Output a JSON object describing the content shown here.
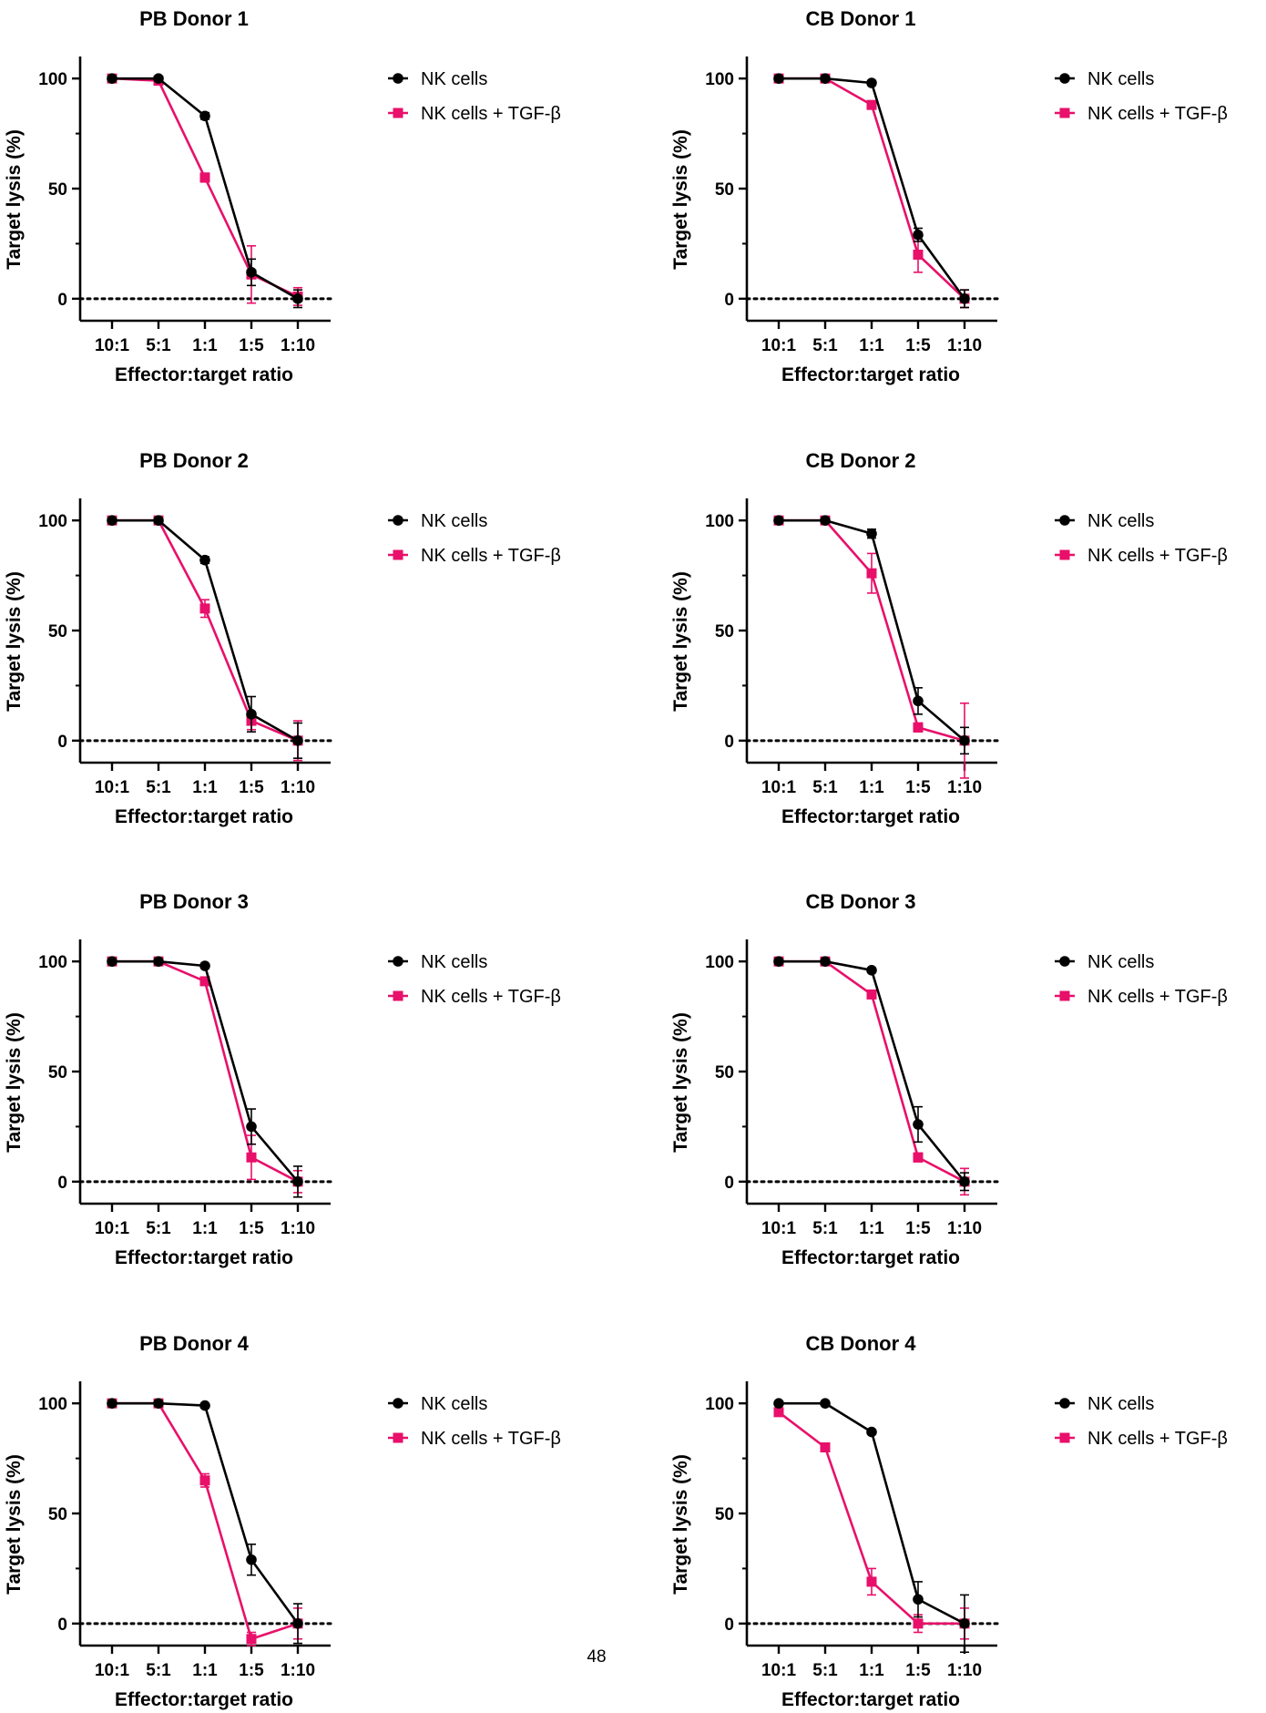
{
  "page": {
    "page_number": "48"
  },
  "legend": {
    "series_labels": [
      "NK cells",
      "NK cells + TGF-β"
    ]
  },
  "colors": {
    "nk_cells": "#000000",
    "nk_cells_tgfb": "#e8106a",
    "axis": "#000000"
  },
  "chart_data": [
    {
      "type": "line",
      "title": "PB Donor 1",
      "xlabel": "Effector:target ratio",
      "ylabel": "Target lysis (%)",
      "categories": [
        "10:1",
        "5:1",
        "1:1",
        "1:5",
        "1:10"
      ],
      "ylim": [
        -10,
        110
      ],
      "yticks": [
        0,
        50,
        100
      ],
      "reference_line_y": 0,
      "legend_position": "right",
      "series": [
        {
          "name": "NK cells",
          "marker": "circle",
          "values": [
            100,
            100,
            83,
            12,
            0
          ],
          "error": [
            1,
            1,
            1.5,
            6,
            4
          ]
        },
        {
          "name": "NK cells + TGF-β",
          "marker": "square",
          "values": [
            100,
            99,
            55,
            11,
            1
          ],
          "error": [
            1,
            1,
            2,
            13,
            4
          ]
        }
      ]
    },
    {
      "type": "line",
      "title": "CB Donor 1",
      "xlabel": "Effector:target ratio",
      "ylabel": "Target lysis (%)",
      "categories": [
        "10:1",
        "5:1",
        "1:1",
        "1:5",
        "1:10"
      ],
      "ylim": [
        -10,
        110
      ],
      "yticks": [
        0,
        50,
        100
      ],
      "reference_line_y": 0,
      "legend_position": "right",
      "series": [
        {
          "name": "NK cells",
          "marker": "circle",
          "values": [
            100,
            100,
            98,
            29,
            0
          ],
          "error": [
            1,
            1,
            1,
            3,
            4
          ]
        },
        {
          "name": "NK cells + TGF-β",
          "marker": "square",
          "values": [
            100,
            100,
            88,
            20,
            0
          ],
          "error": [
            1,
            1,
            1.5,
            8,
            4
          ]
        }
      ]
    },
    {
      "type": "line",
      "title": "PB Donor 2",
      "xlabel": "Effector:target ratio",
      "ylabel": "Target lysis (%)",
      "categories": [
        "10:1",
        "5:1",
        "1:1",
        "1:5",
        "1:10"
      ],
      "ylim": [
        -10,
        110
      ],
      "yticks": [
        0,
        50,
        100
      ],
      "reference_line_y": 0,
      "legend_position": "right",
      "series": [
        {
          "name": "NK cells",
          "marker": "circle",
          "values": [
            100,
            100,
            82,
            12,
            0
          ],
          "error": [
            1,
            1,
            1.5,
            8,
            8
          ]
        },
        {
          "name": "NK cells + TGF-β",
          "marker": "square",
          "values": [
            100,
            100,
            60,
            9,
            0
          ],
          "error": [
            1,
            1,
            4,
            4,
            9
          ]
        }
      ]
    },
    {
      "type": "line",
      "title": "CB Donor 2",
      "xlabel": "Effector:target ratio",
      "ylabel": "Target lysis (%)",
      "categories": [
        "10:1",
        "5:1",
        "1:1",
        "1:5",
        "1:10"
      ],
      "ylim": [
        -10,
        110
      ],
      "yticks": [
        0,
        50,
        100
      ],
      "reference_line_y": 0,
      "legend_position": "right",
      "series": [
        {
          "name": "NK cells",
          "marker": "circle",
          "values": [
            100,
            100,
            94,
            18,
            0
          ],
          "error": [
            1,
            1,
            2,
            6,
            6
          ]
        },
        {
          "name": "NK cells + TGF-β",
          "marker": "square",
          "values": [
            100,
            100,
            76,
            6,
            0
          ],
          "error": [
            1,
            1,
            9,
            2,
            17
          ]
        }
      ]
    },
    {
      "type": "line",
      "title": "PB Donor 3",
      "xlabel": "Effector:target ratio",
      "ylabel": "Target lysis (%)",
      "categories": [
        "10:1",
        "5:1",
        "1:1",
        "1:5",
        "1:10"
      ],
      "ylim": [
        -10,
        110
      ],
      "yticks": [
        0,
        50,
        100
      ],
      "reference_line_y": 0,
      "legend_position": "right",
      "series": [
        {
          "name": "NK cells",
          "marker": "circle",
          "values": [
            100,
            100,
            98,
            25,
            0
          ],
          "error": [
            1,
            1,
            1,
            8,
            7
          ]
        },
        {
          "name": "NK cells + TGF-β",
          "marker": "square",
          "values": [
            100,
            100,
            91,
            11,
            0
          ],
          "error": [
            1,
            1,
            1,
            10,
            5
          ]
        }
      ]
    },
    {
      "type": "line",
      "title": "CB Donor 3",
      "xlabel": "Effector:target ratio",
      "ylabel": "Target lysis (%)",
      "categories": [
        "10:1",
        "5:1",
        "1:1",
        "1:5",
        "1:10"
      ],
      "ylim": [
        -10,
        110
      ],
      "yticks": [
        0,
        50,
        100
      ],
      "reference_line_y": 0,
      "legend_position": "right",
      "series": [
        {
          "name": "NK cells",
          "marker": "circle",
          "values": [
            100,
            100,
            96,
            26,
            0
          ],
          "error": [
            1,
            1,
            1,
            8,
            4
          ]
        },
        {
          "name": "NK cells + TGF-β",
          "marker": "square",
          "values": [
            100,
            100,
            85,
            11,
            0
          ],
          "error": [
            1,
            1,
            1.5,
            2,
            6
          ]
        }
      ]
    },
    {
      "type": "line",
      "title": "PB Donor 4",
      "xlabel": "Effector:target ratio",
      "ylabel": "Target lysis (%)",
      "categories": [
        "10:1",
        "5:1",
        "1:1",
        "1:5",
        "1:10"
      ],
      "ylim": [
        -10,
        110
      ],
      "yticks": [
        0,
        50,
        100
      ],
      "reference_line_y": 0,
      "legend_position": "right",
      "series": [
        {
          "name": "NK cells",
          "marker": "circle",
          "values": [
            100,
            100,
            99,
            29,
            0
          ],
          "error": [
            1,
            1,
            1,
            7,
            9
          ]
        },
        {
          "name": "NK cells + TGF-β",
          "marker": "square",
          "values": [
            100,
            100,
            65,
            -7,
            0
          ],
          "error": [
            1,
            1,
            3,
            3,
            7
          ]
        }
      ]
    },
    {
      "type": "line",
      "title": "CB Donor 4",
      "xlabel": "Effector:target ratio",
      "ylabel": "Target lysis (%)",
      "categories": [
        "10:1",
        "5:1",
        "1:1",
        "1:5",
        "1:10"
      ],
      "ylim": [
        -10,
        110
      ],
      "yticks": [
        0,
        50,
        100
      ],
      "reference_line_y": 0,
      "legend_position": "right",
      "series": [
        {
          "name": "NK cells",
          "marker": "circle",
          "values": [
            100,
            100,
            87,
            11,
            0
          ],
          "error": [
            1,
            1,
            1,
            8,
            13
          ]
        },
        {
          "name": "NK cells + TGF-β",
          "marker": "square",
          "values": [
            96,
            80,
            19,
            0,
            0
          ],
          "error": [
            1,
            1,
            6,
            4,
            7
          ]
        }
      ]
    }
  ]
}
